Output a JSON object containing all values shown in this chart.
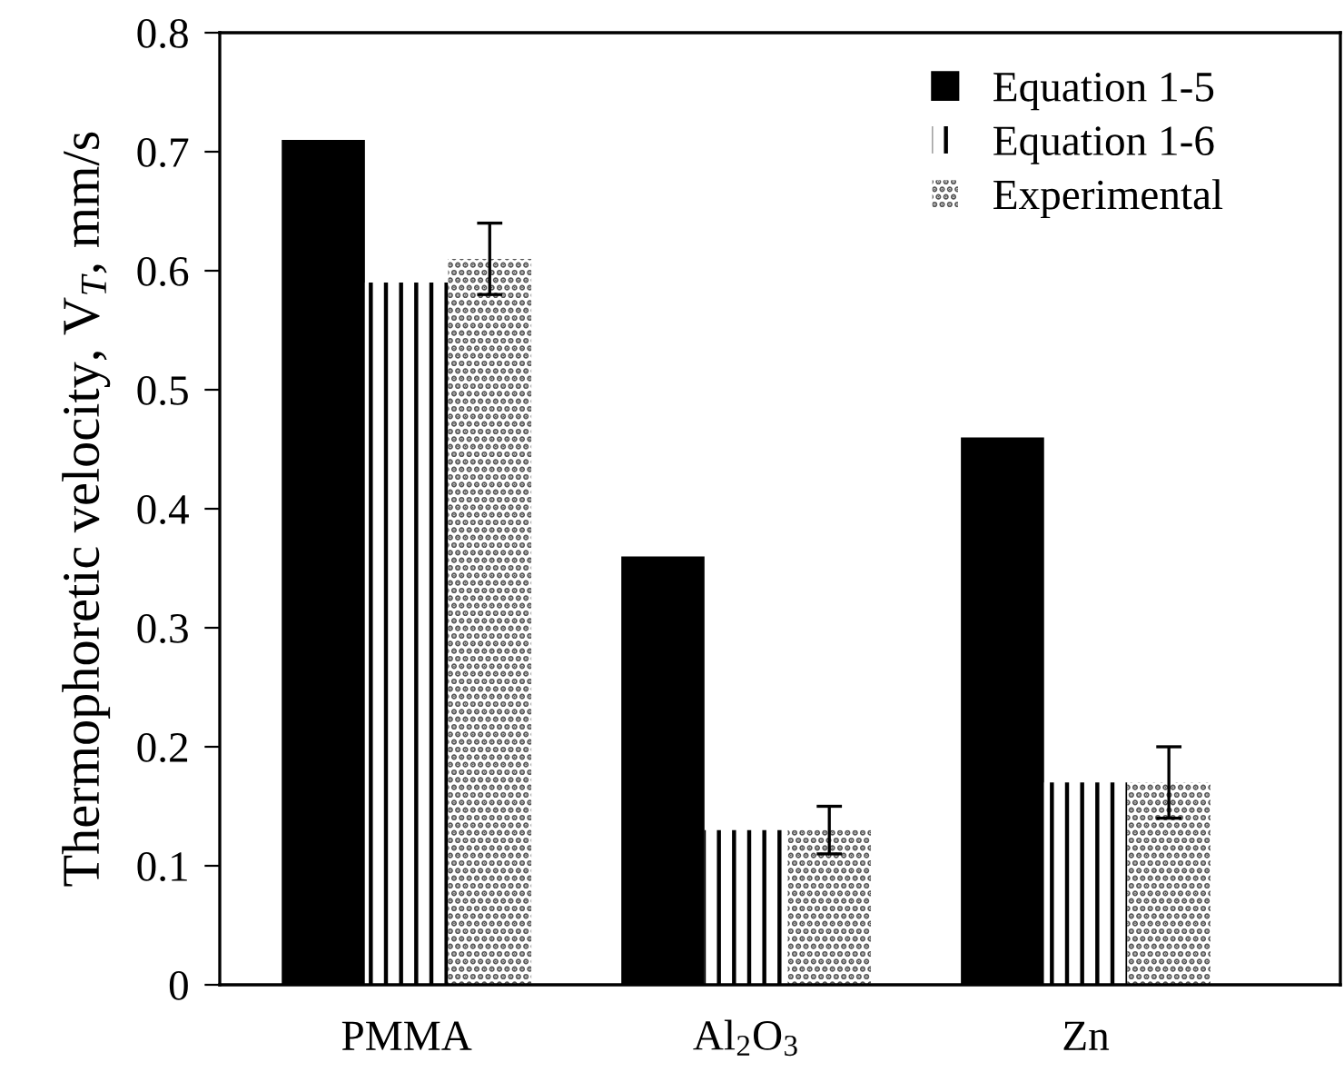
{
  "chart_data": {
    "type": "bar",
    "ylabel": "Thermophoretic velocity, V$_{T}$, mm/s",
    "categories": [
      "PMMA",
      "Al$_{2}$O$_{3}$",
      "Zn"
    ],
    "series": [
      {
        "name": "Equation 1-5",
        "color": "#000000",
        "values": [
          0.71,
          0.36,
          0.46
        ]
      },
      {
        "name": "Equation 1-6",
        "color": "#000000",
        "values": [
          0.59,
          0.13,
          0.17
        ]
      },
      {
        "name": "Experimental",
        "color": "#555555",
        "values": [
          0.61,
          0.13,
          0.17
        ],
        "errors": [
          0.03,
          0.02,
          0.03
        ]
      }
    ],
    "ylim": [
      0,
      0.8
    ],
    "yticks": [
      0,
      0.1,
      0.2,
      0.3,
      0.4,
      0.5,
      0.6,
      0.7,
      0.8
    ],
    "grid": false,
    "legend": "top right"
  }
}
